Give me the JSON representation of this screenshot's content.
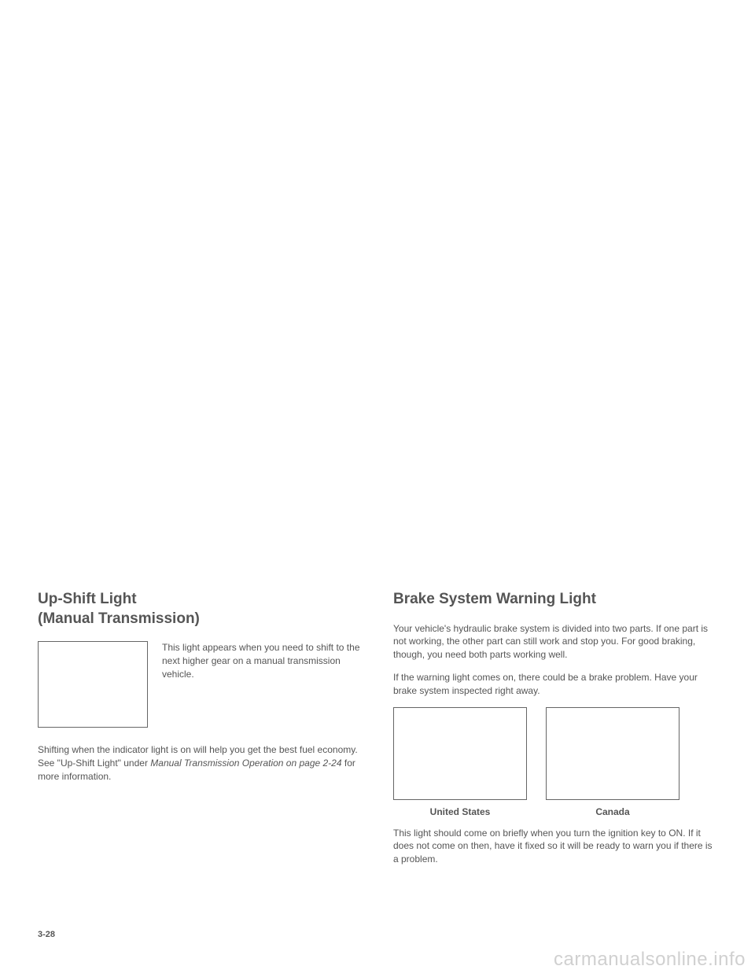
{
  "left": {
    "heading": "Up-Shift Light\n(Manual Transmission)",
    "icon_description": "This light appears when you need to shift to the next higher gear on a manual transmission vehicle.",
    "body_text_1": "Shifting when the indicator light is on will help you get the best fuel economy. See \"Up-Shift Light\" under ",
    "body_ref": "Manual Transmission Operation on page 2-24",
    "body_text_2": " for more information."
  },
  "right": {
    "heading": "Brake System Warning Light",
    "body_text_1": "Your vehicle's hydraulic brake system is divided into two parts. If one part is not working, the other part can still work and stop you. For good braking, though, you need both parts working well.",
    "body_text_2": "If the warning light comes on, there could be a brake problem. Have your brake system inspected right away.",
    "label_us": "United States",
    "label_canada": "Canada",
    "body_text_3": "This light should come on briefly when you turn the ignition key to ON. If it does not come on then, have it fixed so it will be ready to warn you if there is a problem."
  },
  "page_number": "3-28",
  "watermark": "carmanualsonline.info"
}
